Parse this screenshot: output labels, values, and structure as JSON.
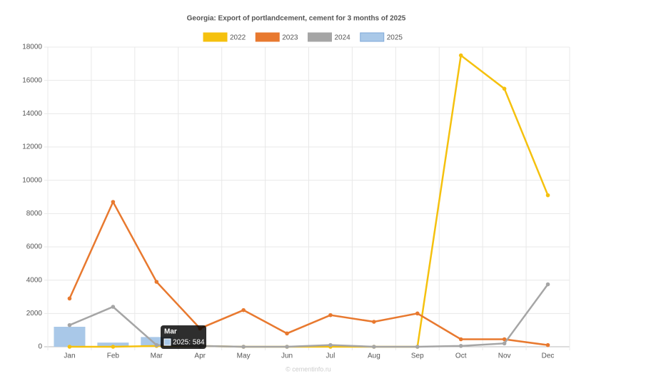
{
  "chart_data": {
    "type": "line",
    "title": "Georgia: Export of portlandcement, cement for 3 months of 2025",
    "categories": [
      "Jan",
      "Feb",
      "Mar",
      "Apr",
      "May",
      "Jun",
      "Jul",
      "Aug",
      "Sep",
      "Oct",
      "Nov",
      "Dec"
    ],
    "series": [
      {
        "name": "2022",
        "color": "#f5c10e",
        "kind": "line",
        "values": [
          0,
          0,
          50,
          50,
          0,
          0,
          0,
          0,
          0,
          17500,
          15500,
          9100
        ]
      },
      {
        "name": "2023",
        "color": "#e8792f",
        "kind": "line",
        "values": [
          2900,
          8700,
          3900,
          1100,
          2200,
          800,
          1900,
          1500,
          2000,
          450,
          450,
          100
        ]
      },
      {
        "name": "2024",
        "color": "#a5a5a5",
        "kind": "line",
        "values": [
          1300,
          2400,
          100,
          50,
          0,
          0,
          100,
          0,
          0,
          50,
          200,
          3750
        ]
      },
      {
        "name": "2025",
        "color": "#a9c8e8",
        "kind": "bar",
        "values": [
          1200,
          250,
          584,
          null,
          null,
          null,
          null,
          null,
          null,
          null,
          null,
          null
        ]
      }
    ],
    "ylim": [
      0,
      18000
    ],
    "yticks": [
      0,
      2000,
      4000,
      6000,
      8000,
      10000,
      12000,
      14000,
      16000,
      18000
    ],
    "grid": true,
    "legend": "top",
    "tooltip": "2025: 584",
    "watermark": "© cementinfo.ru"
  }
}
